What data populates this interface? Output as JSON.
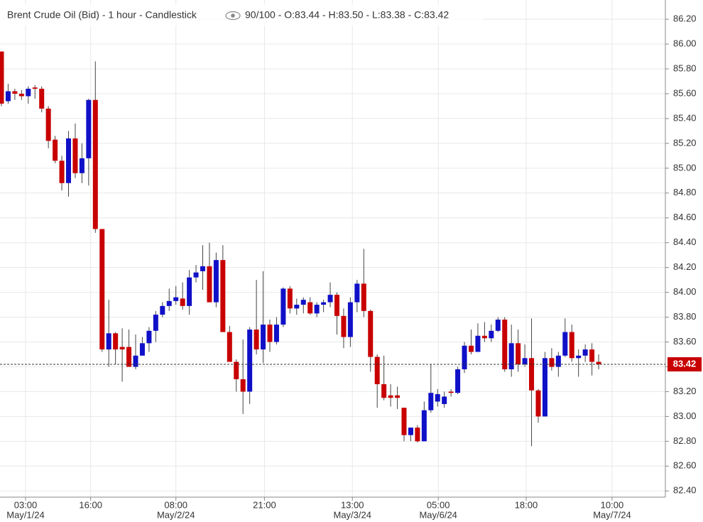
{
  "chart_data": {
    "type": "candlestick",
    "title": "Brent Crude Oil (Bid) - 1 hour - Candlestick",
    "header_info": "90/100 - O:83.44 - H:83.50 - L:83.38 - C:83.42",
    "up_color": "#1010c8",
    "down_color": "#c80000",
    "open": [
      85.94,
      85.54,
      85.62,
      85.6,
      85.58,
      85.65,
      85.64,
      85.48,
      85.23,
      85.06,
      84.88,
      85.24,
      84.96,
      85.08,
      85.55,
      84.51,
      83.54,
      83.67,
      83.56,
      83.56,
      83.4,
      83.49,
      83.59,
      83.69,
      83.82,
      83.89,
      83.93,
      83.95,
      83.89,
      84.12,
      84.17,
      84.21,
      83.92,
      84.26,
      83.68,
      83.44,
      83.3,
      83.2,
      83.7,
      83.54,
      83.74,
      83.6,
      83.74,
      84.03,
      83.87,
      83.9,
      83.92,
      83.83,
      83.9,
      83.92,
      83.98,
      83.81,
      83.64,
      83.92,
      84.07,
      83.85,
      83.48,
      83.26,
      83.17,
      83.17,
      83.07,
      82.85,
      82.91,
      82.8,
      83.05,
      83.12,
      83.1,
      83.2,
      83.19,
      83.38,
      83.57,
      83.52,
      83.65,
      83.63,
      83.69,
      83.78,
      83.38,
      83.59,
      83.42,
      83.47,
      83.21,
      83.0,
      83.47,
      83.4,
      83.49,
      83.68,
      83.47,
      83.49,
      83.54,
      83.44
    ],
    "high": [
      85.94,
      85.68,
      85.64,
      85.63,
      85.66,
      85.67,
      85.66,
      85.5,
      85.26,
      85.1,
      85.3,
      85.36,
      85.2,
      85.56,
      85.86,
      84.51,
      83.94,
      83.68,
      83.71,
      83.7,
      83.66,
      83.64,
      83.72,
      83.85,
      83.92,
      84.03,
      84.05,
      84.08,
      84.18,
      84.22,
      84.38,
      84.4,
      84.32,
      84.38,
      83.73,
      83.46,
      83.62,
      83.72,
      84.1,
      84.17,
      83.78,
      83.8,
      84.04,
      84.05,
      83.95,
      83.96,
      83.96,
      83.92,
      83.94,
      84.08,
      84.0,
      83.87,
      83.96,
      84.1,
      84.35,
      83.86,
      83.5,
      83.49,
      83.26,
      83.24,
      83.07,
      82.91,
      82.93,
      83.12,
      83.42,
      83.22,
      83.2,
      83.22,
      83.4,
      83.6,
      83.7,
      83.75,
      83.76,
      83.74,
      83.8,
      83.8,
      83.74,
      83.7,
      83.58,
      83.79,
      83.22,
      83.52,
      83.55,
      83.52,
      83.79,
      83.74,
      83.54,
      83.58,
      83.59,
      83.5
    ],
    "low": [
      85.5,
      85.52,
      85.55,
      85.55,
      85.52,
      85.56,
      85.45,
      85.16,
      85.04,
      84.82,
      84.77,
      84.92,
      84.88,
      84.86,
      84.48,
      83.52,
      83.4,
      83.42,
      83.28,
      83.4,
      83.38,
      83.49,
      83.52,
      83.6,
      83.8,
      83.85,
      83.9,
      83.86,
      83.82,
      84.08,
      84.02,
      83.92,
      83.88,
      83.68,
      83.44,
      83.2,
      83.02,
      83.1,
      83.5,
      83.43,
      83.52,
      83.58,
      83.72,
      83.83,
      83.82,
      83.83,
      83.82,
      83.8,
      83.84,
      83.88,
      83.66,
      83.55,
      83.56,
      83.84,
      83.8,
      83.36,
      83.07,
      83.13,
      83.08,
      83.06,
      82.8,
      82.8,
      82.79,
      82.8,
      83.03,
      83.08,
      83.07,
      83.16,
      83.18,
      83.35,
      83.5,
      83.52,
      83.6,
      83.6,
      83.68,
      83.36,
      83.32,
      83.36,
      83.4,
      82.76,
      82.95,
      83.0,
      83.37,
      83.32,
      83.48,
      83.44,
      83.32,
      83.44,
      83.33,
      83.38
    ],
    "close": [
      85.52,
      85.62,
      85.6,
      85.58,
      85.64,
      85.64,
      85.48,
      85.22,
      85.06,
      84.88,
      85.24,
      84.96,
      85.08,
      85.55,
      84.51,
      83.54,
      83.67,
      83.54,
      83.54,
      83.4,
      83.49,
      83.59,
      83.69,
      83.82,
      83.89,
      83.93,
      83.96,
      83.89,
      84.12,
      84.16,
      84.21,
      83.92,
      84.26,
      83.68,
      83.44,
      83.3,
      83.2,
      83.7,
      83.54,
      83.74,
      83.6,
      83.74,
      84.03,
      83.87,
      83.9,
      83.94,
      83.83,
      83.9,
      83.92,
      83.98,
      83.81,
      83.64,
      83.92,
      84.07,
      83.85,
      83.48,
      83.26,
      83.15,
      83.15,
      83.15,
      82.85,
      82.91,
      82.8,
      83.05,
      83.19,
      83.18,
      83.16,
      83.19,
      83.38,
      83.57,
      83.52,
      83.65,
      83.63,
      83.69,
      83.78,
      83.38,
      83.59,
      83.42,
      83.47,
      83.21,
      83.0,
      83.47,
      83.4,
      83.49,
      83.68,
      83.47,
      83.49,
      83.54,
      83.44,
      83.42
    ],
    "last_price": 83.42,
    "ylim": [
      82.35,
      86.355
    ],
    "yticks": [
      {
        "value": 82.4,
        "label": "82.40"
      },
      {
        "value": 82.6,
        "label": "82.60"
      },
      {
        "value": 82.8,
        "label": "82.80"
      },
      {
        "value": 83,
        "label": "83.00"
      },
      {
        "value": 83.2,
        "label": "83.20"
      },
      {
        "value": 83.4,
        "label": "83.40"
      },
      {
        "value": 83.6,
        "label": "83.60"
      },
      {
        "value": 83.8,
        "label": "83.80"
      },
      {
        "value": 84,
        "label": "84.00"
      },
      {
        "value": 84.2,
        "label": "84.20"
      },
      {
        "value": 84.4,
        "label": "84.40"
      },
      {
        "value": 84.6,
        "label": "84.60"
      },
      {
        "value": 84.8,
        "label": "84.80"
      },
      {
        "value": 85,
        "label": "85.00"
      },
      {
        "value": 85.2,
        "label": "85.20"
      },
      {
        "value": 85.4,
        "label": "85.40"
      },
      {
        "value": 85.6,
        "label": "85.60"
      },
      {
        "value": 85.8,
        "label": "85.80"
      },
      {
        "value": 86,
        "label": "86.00"
      },
      {
        "value": 86.2,
        "label": "86.20"
      }
    ],
    "xticks": [
      {
        "value": 3.6,
        "label": "03:00",
        "date": "May/1/24"
      },
      {
        "value": 13.3,
        "label": "16:00"
      },
      {
        "value": 26,
        "label": "08:00",
        "date": "May/2/24"
      },
      {
        "value": 39.2,
        "label": "21:00"
      },
      {
        "value": 52.3,
        "label": "13:00",
        "date": "May/3/24"
      },
      {
        "value": 65.1,
        "label": "05:00",
        "date": "May/6/24"
      },
      {
        "value": 78.2,
        "label": "18:00"
      },
      {
        "value": 91,
        "label": "10:00",
        "date": "May/7/24"
      }
    ],
    "grid": true
  }
}
